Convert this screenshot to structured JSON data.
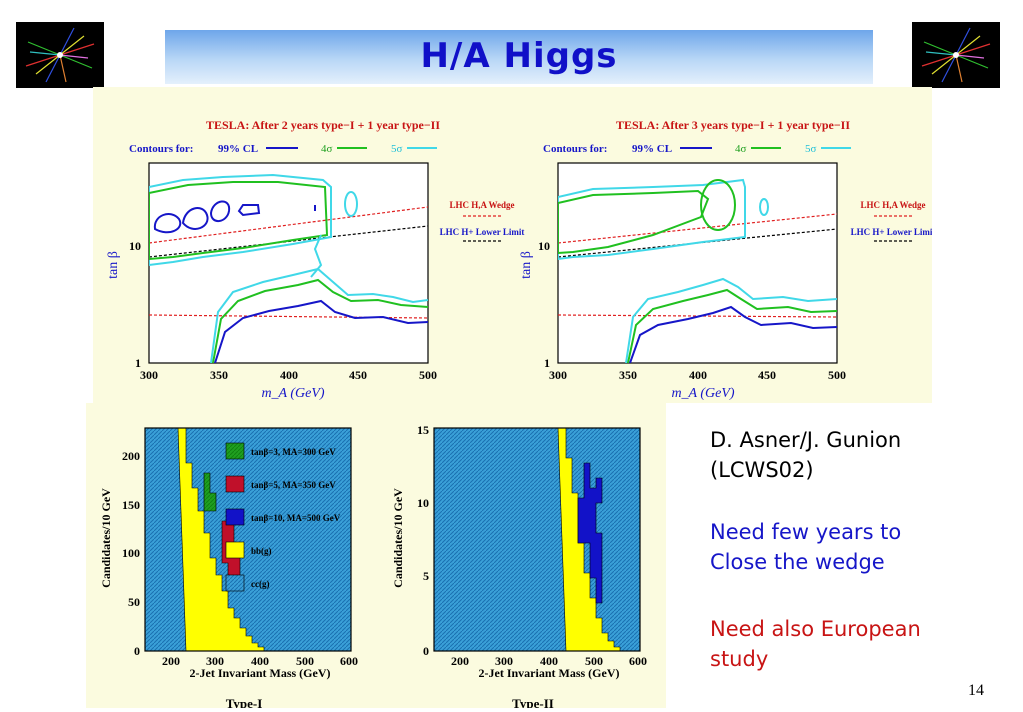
{
  "slide": {
    "title": "H/A Higgs",
    "page_number": "14",
    "notes": {
      "author_line1": "D. Asner/J. Gunion",
      "author_line2": "(LCWS02)",
      "blue_line1": "Need few years to",
      "blue_line2": "Close the wedge",
      "red_line1": "Need also European",
      "red_line2": "study"
    },
    "colors": {
      "title": "#1010c8",
      "blue_note": "#1616c8",
      "red_note": "#c81414",
      "panel_bg": "#fbfbdf"
    }
  },
  "contour_plots": {
    "common": {
      "contours_label": "Contours for:",
      "cl99_label": "99% CL",
      "sigma4_label": "4σ",
      "sigma5_label": "5σ",
      "ylabel": "tan β",
      "xlabel": "m_A (GeV)",
      "xticks": [
        "300",
        "350",
        "400",
        "450",
        "500"
      ],
      "yticks": [
        "1",
        "10"
      ],
      "wedge_label": "LHC H,A Wedge",
      "lower_limit_label": "LHC H+ Lower Limit"
    },
    "left": {
      "title": "TESLA: After 2 years type−I + 1 year type−II"
    },
    "right": {
      "title": "TESLA: After 3 years type−I + 1 year type−II"
    }
  },
  "histograms": {
    "ylabel": "Candidates/10 GeV",
    "xlabel": "2-Jet Invariant Mass (GeV)",
    "xticks": [
      "200",
      "300",
      "400",
      "500",
      "600"
    ],
    "left": {
      "yticks": [
        "0",
        "50",
        "100",
        "150",
        "200"
      ],
      "caption": "Type-I",
      "legend": [
        {
          "label": "tanβ=3, MA=300 GeV",
          "color": "#20a020"
        },
        {
          "label": "tanβ=5, MA=350 GeV",
          "color": "#c0102a"
        },
        {
          "label": "tanβ=10, MA=500 GeV",
          "color": "#1212c8"
        },
        {
          "label": "bb(g)",
          "color": "#ffff00"
        },
        {
          "label": "cc(g)",
          "color": "#3aa0d8"
        }
      ]
    },
    "right": {
      "yticks": [
        "0",
        "5",
        "10",
        "15"
      ],
      "caption": "Type-II"
    }
  }
}
